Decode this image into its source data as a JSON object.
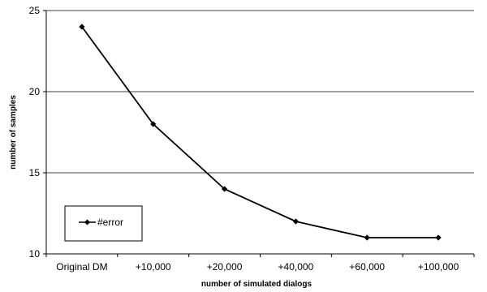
{
  "chart_data": {
    "type": "line",
    "title": "",
    "xlabel": "number of simulated dialogs",
    "ylabel": "number of samples",
    "categories": [
      "Original DM",
      "+10,000",
      "+20,000",
      "+40,000",
      "+60,000",
      "+100,000"
    ],
    "series": [
      {
        "name": "#error",
        "values": [
          24,
          18,
          14,
          12,
          11,
          11
        ],
        "color": "#000000",
        "marker": "diamond"
      }
    ],
    "ylim": [
      10,
      25
    ],
    "yticks": [
      10,
      15,
      20,
      25
    ],
    "grid": "horizontal",
    "legend_position": "bottom-left"
  }
}
